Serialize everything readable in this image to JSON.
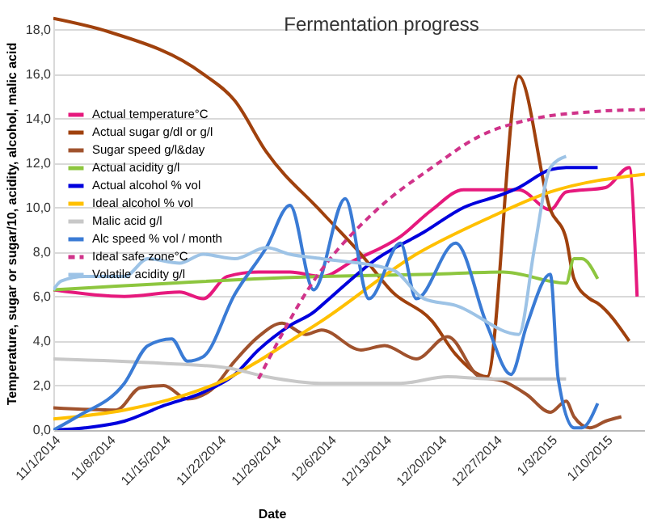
{
  "chart_data": {
    "type": "line",
    "title": "Fermentation progress",
    "xlabel": "Date",
    "ylabel": "Temperature, sugar or sugar/10, acidity, alcohol, malic acid",
    "xlim": [
      "2014-11-01",
      "2015-01-15"
    ],
    "xticks": [
      {
        "value": "2014-11-01",
        "label": "11/1/2014"
      },
      {
        "value": "2014-11-08",
        "label": "11/8/2014"
      },
      {
        "value": "2014-11-15",
        "label": "11/15/2014"
      },
      {
        "value": "2014-11-22",
        "label": "11/22/2014"
      },
      {
        "value": "2014-11-29",
        "label": "11/29/2014"
      },
      {
        "value": "2014-12-06",
        "label": "12/6/2014"
      },
      {
        "value": "2014-12-13",
        "label": "12/13/2014"
      },
      {
        "value": "2014-12-20",
        "label": "12/20/2014"
      },
      {
        "value": "2014-12-27",
        "label": "12/27/2014"
      },
      {
        "value": "2015-01-03",
        "label": "1/3/2015"
      },
      {
        "value": "2015-01-10",
        "label": "1/10/2015"
      }
    ],
    "ylim": [
      0,
      18.6
    ],
    "yticks": [
      {
        "value": 0,
        "label": "0,0"
      },
      {
        "value": 2,
        "label": "2,0"
      },
      {
        "value": 4,
        "label": "4,0"
      },
      {
        "value": 6,
        "label": "6,0"
      },
      {
        "value": 8,
        "label": "8,0"
      },
      {
        "value": 10,
        "label": "10,0"
      },
      {
        "value": 12,
        "label": "12,0"
      },
      {
        "value": 14,
        "label": "14,0"
      },
      {
        "value": 16,
        "label": "16,0"
      },
      {
        "value": 18,
        "label": "18,0"
      }
    ],
    "grid": "y",
    "legend": "top left",
    "series": [
      {
        "name": "Actual temperature°C",
        "color": "#e6197d",
        "x": [
          "2014-11-01",
          "2014-11-10",
          "2014-11-17",
          "2014-11-20",
          "2014-11-23",
          "2014-11-27",
          "2014-12-01",
          "2014-12-05",
          "2014-12-09",
          "2014-12-15",
          "2014-12-19",
          "2014-12-23",
          "2014-12-30",
          "2015-01-03",
          "2015-01-05",
          "2015-01-10",
          "2015-01-13",
          "2015-01-14"
        ],
        "values": [
          6.3,
          6.0,
          6.2,
          5.9,
          6.9,
          7.1,
          7.1,
          6.9,
          7.6,
          8.7,
          9.9,
          10.8,
          10.8,
          9.9,
          10.7,
          10.9,
          11.8,
          6.0
        ]
      },
      {
        "name": "Actual sugar g/dl or g/l",
        "color": "#a0410d",
        "x": [
          "2014-11-01",
          "2014-11-08",
          "2014-11-20",
          "2014-11-24",
          "2014-11-28",
          "2014-12-05",
          "2014-12-10",
          "2014-12-14",
          "2014-12-19",
          "2014-12-22",
          "2014-12-26",
          "2014-12-30",
          "2015-01-03",
          "2015-01-05",
          "2015-01-06",
          "2015-01-08",
          "2015-01-09",
          "2015-01-13"
        ],
        "values": [
          18.5,
          17.9,
          16.0,
          14.8,
          12.5,
          9.8,
          7.9,
          6.2,
          4.9,
          3.4,
          2.4,
          15.9,
          9.9,
          8.6,
          6.8,
          5.9,
          5.7,
          4.0
        ]
      },
      {
        "name": "Sugar speed g/l&day",
        "color": "#a0522d",
        "x": [
          "2014-11-01",
          "2014-11-09",
          "2014-11-12",
          "2014-11-15",
          "2014-11-18",
          "2014-11-21",
          "2014-11-24",
          "2014-11-27",
          "2014-11-30",
          "2014-12-03",
          "2014-12-05",
          "2014-12-10",
          "2014-12-13",
          "2014-12-17",
          "2014-12-21",
          "2014-12-25",
          "2014-12-28",
          "2014-12-31",
          "2015-01-03",
          "2015-01-05",
          "2015-01-06",
          "2015-01-08",
          "2015-01-10",
          "2015-01-12"
        ],
        "values": [
          1.0,
          0.9,
          1.9,
          2.0,
          1.4,
          1.8,
          3.1,
          4.2,
          4.8,
          4.3,
          4.5,
          3.6,
          3.8,
          3.2,
          4.2,
          2.4,
          2.2,
          1.6,
          0.8,
          1.3,
          0.6,
          0.1,
          0.4,
          0.6
        ]
      },
      {
        "name": "Actual acidity g/l",
        "color": "#8dc63f",
        "x": [
          "2014-11-01",
          "2014-12-05",
          "2014-12-19",
          "2014-12-28",
          "2015-01-05",
          "2015-01-06",
          "2015-01-07",
          "2015-01-09"
        ],
        "values": [
          6.3,
          6.9,
          7.0,
          7.1,
          6.6,
          7.7,
          7.7,
          6.8
        ]
      },
      {
        "name": "Actual alcohol % vol",
        "color": "#0000dd",
        "x": [
          "2014-11-01",
          "2014-11-05",
          "2014-11-10",
          "2014-11-15",
          "2014-11-20",
          "2014-11-24",
          "2014-11-27",
          "2014-12-01",
          "2014-12-04",
          "2014-12-05",
          "2014-12-12",
          "2014-12-18",
          "2014-12-23",
          "2014-12-28",
          "2014-12-30",
          "2015-01-03",
          "2015-01-05",
          "2015-01-09"
        ],
        "values": [
          0.0,
          0.1,
          0.4,
          1.1,
          1.7,
          2.5,
          3.6,
          4.7,
          5.3,
          5.6,
          7.7,
          8.9,
          10.0,
          10.6,
          10.9,
          11.7,
          11.8,
          11.8
        ]
      },
      {
        "name": "Ideal alcohol % vol",
        "color": "#ffc000",
        "x": [
          "2014-11-01",
          "2014-11-10",
          "2014-11-17",
          "2014-11-23",
          "2014-11-27",
          "2014-12-01",
          "2014-12-05",
          "2014-12-17",
          "2014-12-26",
          "2015-01-03",
          "2015-01-15"
        ],
        "values": [
          0.5,
          0.9,
          1.5,
          2.3,
          3.1,
          4.0,
          4.9,
          7.9,
          9.5,
          10.7,
          11.5
        ]
      },
      {
        "name": "Malic acid g/l",
        "color": "#c8c8c8",
        "x": [
          "2014-11-01",
          "2014-11-15",
          "2014-11-23",
          "2014-11-28",
          "2014-12-05",
          "2014-12-15",
          "2014-12-21",
          "2014-12-26",
          "2015-01-05"
        ],
        "values": [
          3.2,
          3.0,
          2.8,
          2.4,
          2.1,
          2.1,
          2.4,
          2.3,
          2.3
        ]
      },
      {
        "name": "Alc speed % vol / month",
        "color": "#3a7bd5",
        "x": [
          "2014-11-01",
          "2014-11-04",
          "2014-11-10",
          "2014-11-13",
          "2014-11-16",
          "2014-11-18",
          "2014-11-20",
          "2014-11-24",
          "2014-11-28",
          "2014-12-01",
          "2014-12-04",
          "2014-12-08",
          "2014-12-11",
          "2014-12-15",
          "2014-12-17",
          "2014-12-22",
          "2014-12-26",
          "2014-12-29",
          "2014-12-31",
          "2015-01-03",
          "2015-01-04",
          "2015-01-06",
          "2015-01-07",
          "2015-01-09"
        ],
        "values": [
          0.0,
          0.6,
          2.1,
          3.8,
          4.1,
          3.1,
          3.3,
          6.1,
          8.2,
          10.1,
          6.3,
          10.4,
          5.9,
          8.4,
          5.9,
          8.4,
          4.7,
          2.5,
          4.7,
          7.0,
          2.3,
          0.1,
          0.1,
          1.2
        ]
      },
      {
        "name": "Ideal safe zone°C",
        "color": "#d0338a",
        "line_style": "dashed",
        "x": [
          "2014-11-27",
          "2014-12-04",
          "2014-12-12",
          "2014-12-19",
          "2014-12-25",
          "2015-01-01",
          "2015-01-08",
          "2015-01-15"
        ],
        "values": [
          2.3,
          6.7,
          9.9,
          11.8,
          13.2,
          14.0,
          14.3,
          14.4
        ]
      },
      {
        "name": "Volatile acidity g/l",
        "color": "#9dc3e6",
        "x": [
          "2014-11-01",
          "2014-11-02",
          "2014-11-05",
          "2014-11-10",
          "2014-11-13",
          "2014-11-17",
          "2014-11-20",
          "2014-11-24",
          "2014-11-28",
          "2014-12-01",
          "2014-12-05",
          "2014-12-14",
          "2014-12-18",
          "2014-12-22",
          "2014-12-30",
          "2015-01-01",
          "2015-01-03",
          "2015-01-05"
        ],
        "values": [
          6.3,
          6.7,
          6.9,
          6.9,
          7.7,
          7.5,
          7.9,
          7.7,
          8.2,
          7.9,
          7.7,
          7.2,
          5.9,
          5.6,
          4.3,
          8.2,
          11.8,
          12.3
        ]
      }
    ]
  }
}
